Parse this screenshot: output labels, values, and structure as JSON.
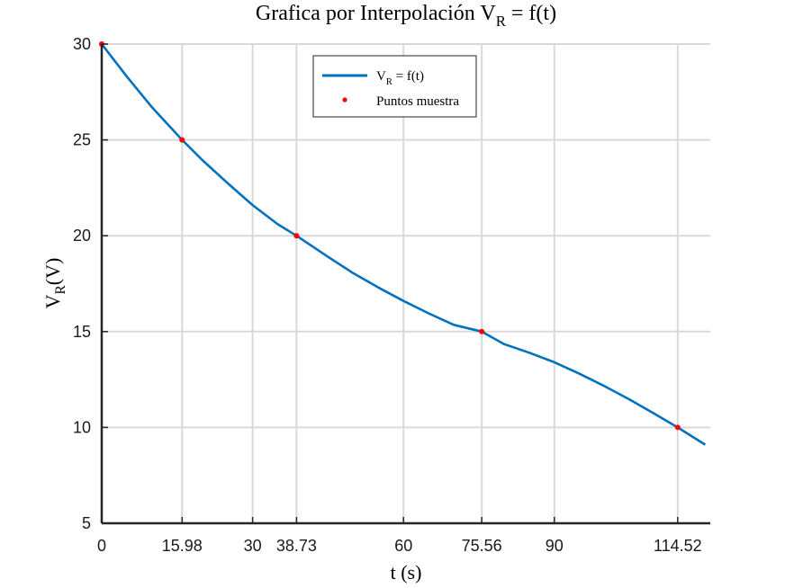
{
  "chart_data": {
    "type": "line",
    "title": {
      "main": "Grafica por Interpolación V",
      "sub": "R",
      "rest": " = f(t)"
    },
    "xlabel": "t (s)",
    "ylabel": {
      "main": "V",
      "sub": "R",
      "rest": "(V)"
    },
    "xlim": [
      0,
      121
    ],
    "ylim": [
      5,
      30
    ],
    "grid": true,
    "legend_position": "top-center",
    "x_ticks": [
      0,
      15.98,
      30,
      38.73,
      60,
      75.56,
      90,
      114.52
    ],
    "x_tick_labels": [
      "0",
      "15.98",
      "30",
      "38.73",
      "60",
      "75.56",
      "90",
      "114.52"
    ],
    "y_ticks": [
      5,
      10,
      15,
      20,
      25,
      30
    ],
    "y_tick_labels": [
      "5",
      "10",
      "15",
      "20",
      "25",
      "30"
    ],
    "series": [
      {
        "name": {
          "main": "V",
          "sub": "R",
          "rest": " = f(t)"
        },
        "kind": "line",
        "color": "#0072BD",
        "x": [
          0,
          5,
          10,
          15.98,
          20,
          25,
          30,
          35,
          38.73,
          45,
          50,
          55,
          60,
          65,
          70,
          75.56,
          80,
          85,
          90,
          95,
          100,
          105,
          110,
          114.52,
          120
        ],
        "y": [
          30,
          28.3,
          26.7,
          25,
          23.95,
          22.75,
          21.6,
          20.6,
          20,
          18.9,
          18.05,
          17.3,
          16.6,
          15.95,
          15.35,
          15,
          14.35,
          13.9,
          13.4,
          12.8,
          12.15,
          11.45,
          10.7,
          10,
          9.1
        ]
      },
      {
        "name": "Puntos muestra",
        "kind": "markers",
        "color": "#FF0000",
        "x": [
          0,
          15.98,
          38.73,
          75.56,
          114.52
        ],
        "y": [
          30,
          25,
          20,
          15,
          10
        ]
      }
    ]
  }
}
